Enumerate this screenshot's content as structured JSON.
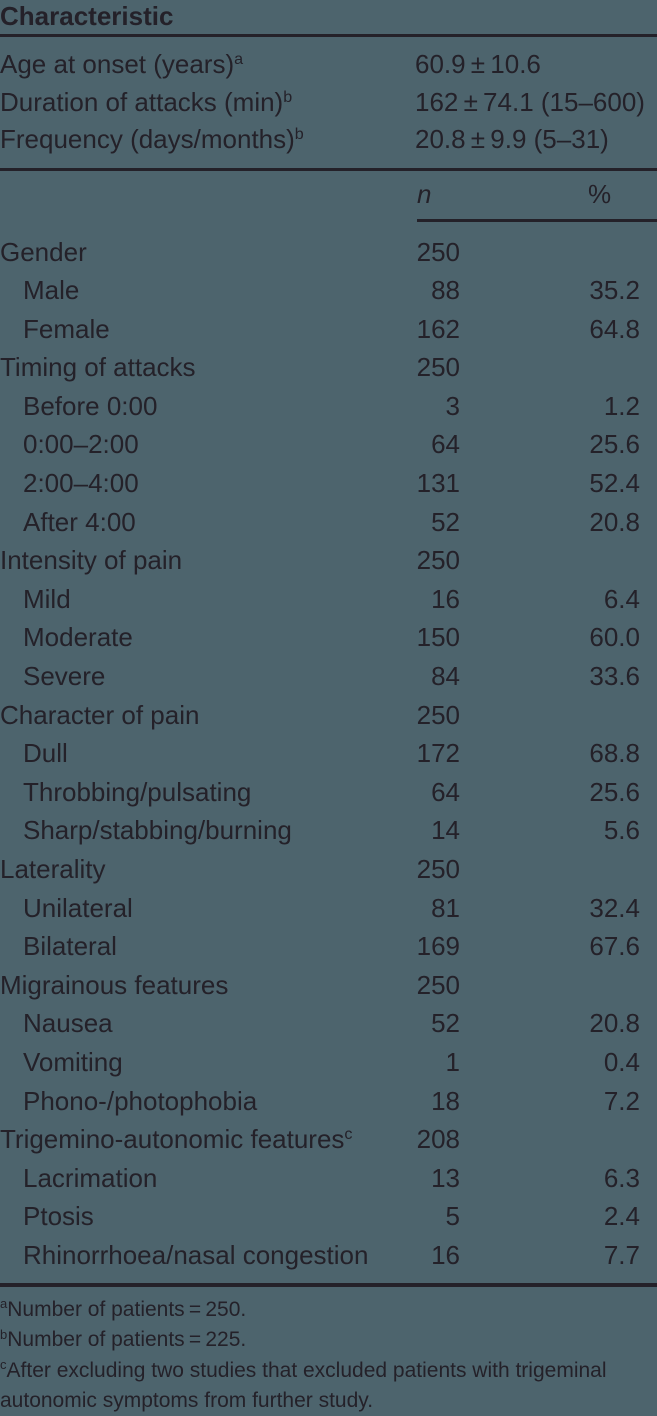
{
  "table": {
    "title": "Characteristic",
    "stats_rows": [
      {
        "label": "Age at onset (years)",
        "sup": "a",
        "value": "60.9 ± 10.6"
      },
      {
        "label": "Duration of attacks (min)",
        "sup": "b",
        "value": "162 ± 74.1 (15–600)"
      },
      {
        "label": "Frequency (days/months)",
        "sup": "b",
        "value": "20.8 ± 9.9 (5–31)"
      }
    ],
    "columns": {
      "n": "n",
      "pct": "%"
    },
    "rows": [
      {
        "label": "Gender",
        "indent": false,
        "sup": "",
        "n": "250",
        "pct": ""
      },
      {
        "label": "Male",
        "indent": true,
        "sup": "",
        "n": "88",
        "pct": "35.2"
      },
      {
        "label": "Female",
        "indent": true,
        "sup": "",
        "n": "162",
        "pct": "64.8"
      },
      {
        "label": "Timing of attacks",
        "indent": false,
        "sup": "",
        "n": "250",
        "pct": ""
      },
      {
        "label": "Before 0:00",
        "indent": true,
        "sup": "",
        "n": "3",
        "pct": "1.2"
      },
      {
        "label": "0:00–2:00",
        "indent": true,
        "sup": "",
        "n": "64",
        "pct": "25.6"
      },
      {
        "label": "2:00–4:00",
        "indent": true,
        "sup": "",
        "n": "131",
        "pct": "52.4"
      },
      {
        "label": "After 4:00",
        "indent": true,
        "sup": "",
        "n": "52",
        "pct": "20.8"
      },
      {
        "label": "Intensity of pain",
        "indent": false,
        "sup": "",
        "n": "250",
        "pct": ""
      },
      {
        "label": "Mild",
        "indent": true,
        "sup": "",
        "n": "16",
        "pct": "6.4"
      },
      {
        "label": "Moderate",
        "indent": true,
        "sup": "",
        "n": "150",
        "pct": "60.0"
      },
      {
        "label": "Severe",
        "indent": true,
        "sup": "",
        "n": "84",
        "pct": "33.6"
      },
      {
        "label": "Character of pain",
        "indent": false,
        "sup": "",
        "n": "250",
        "pct": ""
      },
      {
        "label": "Dull",
        "indent": true,
        "sup": "",
        "n": "172",
        "pct": "68.8"
      },
      {
        "label": "Throbbing/pulsating",
        "indent": true,
        "sup": "",
        "n": "64",
        "pct": "25.6"
      },
      {
        "label": "Sharp/stabbing/burning",
        "indent": true,
        "sup": "",
        "n": "14",
        "pct": "5.6"
      },
      {
        "label": "Laterality",
        "indent": false,
        "sup": "",
        "n": "250",
        "pct": ""
      },
      {
        "label": "Unilateral",
        "indent": true,
        "sup": "",
        "n": "81",
        "pct": "32.4"
      },
      {
        "label": "Bilateral",
        "indent": true,
        "sup": "",
        "n": "169",
        "pct": "67.6"
      },
      {
        "label": "Migrainous features",
        "indent": false,
        "sup": "",
        "n": "250",
        "pct": ""
      },
      {
        "label": "Nausea",
        "indent": true,
        "sup": "",
        "n": "52",
        "pct": "20.8"
      },
      {
        "label": "Vomiting",
        "indent": true,
        "sup": "",
        "n": "1",
        "pct": "0.4"
      },
      {
        "label": "Phono-/photophobia",
        "indent": true,
        "sup": "",
        "n": "18",
        "pct": "7.2"
      },
      {
        "label": "Trigemino-autonomic features",
        "indent": false,
        "sup": "c",
        "n": "208",
        "pct": ""
      },
      {
        "label": "Lacrimation",
        "indent": true,
        "sup": "",
        "n": "13",
        "pct": "6.3"
      },
      {
        "label": "Ptosis",
        "indent": true,
        "sup": "",
        "n": "5",
        "pct": "2.4"
      },
      {
        "label": "Rhinorrhoea/nasal congestion",
        "indent": true,
        "sup": "",
        "n": "16",
        "pct": "7.7"
      }
    ],
    "footnotes": [
      {
        "sup": "a",
        "text": "Number of patients = 250."
      },
      {
        "sup": "b",
        "text": "Number of patients = 225."
      },
      {
        "sup": "c",
        "text": "After excluding two studies that excluded patients with trigeminal autonomic symptoms from further study."
      }
    ],
    "colors": {
      "background": "#4d646d",
      "ink": "#242129"
    }
  }
}
